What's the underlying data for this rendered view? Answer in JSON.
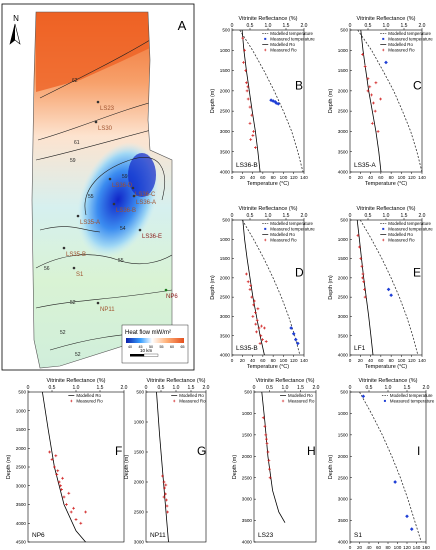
{
  "map": {
    "letter": "A",
    "north": "N",
    "legend_title": "Heat flow mW/m²",
    "legend_ticks": [
      "40",
      "45",
      "50",
      "55",
      "60",
      "65"
    ],
    "scale_label": "10 km",
    "contour_labels": [
      "62",
      "61",
      "59",
      "59",
      "55",
      "54",
      "56",
      "55",
      "52",
      "52",
      "52"
    ],
    "wells": [
      "LS23",
      "LS30",
      "LS36-D",
      "LS36-C",
      "LS36-A",
      "LS36-B",
      "LS35-A",
      "LS36-E",
      "LS35-B",
      "S1",
      "NP6",
      "NP11"
    ],
    "colors": {
      "high": "#ee6f2c",
      "mid": "#ffffff",
      "low": "#1f3fd6",
      "accent": "#b8860b"
    }
  },
  "panel_texts": {
    "vr_title": "Vitrinite Reflectance (%)",
    "temp_title": "Temperature (°C)",
    "depth_title": "Depth (m)",
    "legend_modelled_temp": "Modelled temperature",
    "legend_measured_temp": "Measured temperature",
    "legend_modelled_ro": "Modelled Ro",
    "legend_measured_ro": "Measured Ro"
  },
  "chart_data": [
    {
      "id": "B",
      "type": "scatter",
      "well": "LS36-B",
      "vr_ticks": [
        "0",
        "0.5",
        "1.0",
        "1.5",
        "2.0"
      ],
      "temp_ticks": [
        "0",
        "20",
        "40",
        "60",
        "80",
        "100",
        "120",
        "140"
      ],
      "depth_ticks": [
        "500",
        "1000",
        "1500",
        "2000",
        "2500",
        "3000",
        "3500",
        "4000"
      ],
      "ylim": [
        500,
        4000
      ],
      "vr_lim": [
        0,
        2
      ],
      "temp_lim": [
        0,
        140
      ],
      "legend": [
        "Modelled temperature",
        "Measured temperature",
        "Modelled Ro",
        "Measured Ro"
      ],
      "modelled_temperature": [
        [
          15,
          500
        ],
        [
          40,
          1000
        ],
        [
          62,
          1500
        ],
        [
          82,
          2000
        ],
        [
          100,
          2500
        ],
        [
          116,
          3000
        ],
        [
          128,
          3500
        ],
        [
          138,
          4000
        ]
      ],
      "measured_temperature": [
        [
          76,
          2230
        ],
        [
          80,
          2250
        ],
        [
          84,
          2270
        ],
        [
          86,
          2300
        ],
        [
          90,
          2320
        ]
      ],
      "modelled_ro": [
        [
          0.28,
          500
        ],
        [
          0.33,
          1000
        ],
        [
          0.4,
          1500
        ],
        [
          0.48,
          2000
        ],
        [
          0.56,
          2500
        ],
        [
          0.65,
          3000
        ],
        [
          0.72,
          3500
        ],
        [
          0.78,
          4000
        ]
      ],
      "measured_ro": [
        [
          0.3,
          700
        ],
        [
          0.35,
          1000
        ],
        [
          0.32,
          1300
        ],
        [
          0.38,
          1500
        ],
        [
          0.4,
          1800
        ],
        [
          0.42,
          2000
        ],
        [
          0.45,
          2200
        ],
        [
          0.5,
          2400
        ],
        [
          0.55,
          2600
        ],
        [
          0.5,
          2800
        ],
        [
          0.6,
          3000
        ],
        [
          0.52,
          3200
        ],
        [
          0.65,
          3400
        ],
        [
          0.58,
          3100
        ],
        [
          0.44,
          1900
        ]
      ]
    },
    {
      "id": "C",
      "type": "scatter",
      "well": "LS35-A",
      "vr_ticks": [
        "0",
        "0.5",
        "1.0",
        "1.5",
        "2.0"
      ],
      "temp_ticks": [
        "0",
        "20",
        "40",
        "60",
        "80",
        "100",
        "120",
        "140"
      ],
      "depth_ticks": [
        "500",
        "1000",
        "1500",
        "2000",
        "2500",
        "3000",
        "3500",
        "4000"
      ],
      "ylim": [
        500,
        4000
      ],
      "vr_lim": [
        0,
        2
      ],
      "temp_lim": [
        0,
        140
      ],
      "legend": [
        "Modelled temperature",
        "Measured temperature",
        "Modelled Ro",
        "Measured Ro"
      ],
      "modelled_temperature": [
        [
          15,
          500
        ],
        [
          42,
          1000
        ],
        [
          64,
          1500
        ],
        [
          85,
          2000
        ],
        [
          102,
          2500
        ],
        [
          118,
          3000
        ],
        [
          130,
          3500
        ],
        [
          140,
          4000
        ]
      ],
      "measured_temperature": [
        [
          70,
          1300
        ]
      ],
      "modelled_ro": [
        [
          0.3,
          500
        ],
        [
          0.36,
          1000
        ],
        [
          0.44,
          1500
        ],
        [
          0.52,
          2000
        ],
        [
          0.62,
          2500
        ],
        [
          0.72,
          3000
        ],
        [
          0.8,
          3500
        ],
        [
          0.86,
          4000
        ]
      ],
      "measured_ro": [
        [
          0.35,
          1100
        ],
        [
          0.42,
          1400
        ],
        [
          0.5,
          1700
        ],
        [
          0.55,
          1900
        ],
        [
          0.6,
          2100
        ],
        [
          0.65,
          2300
        ],
        [
          0.7,
          2500
        ],
        [
          0.62,
          2800
        ],
        [
          0.78,
          3000
        ],
        [
          0.72,
          1800
        ],
        [
          0.85,
          2200
        ],
        [
          0.5,
          2000
        ]
      ]
    },
    {
      "id": "D",
      "type": "scatter",
      "well": "LS35-B",
      "vr_ticks": [
        "0",
        "0.5",
        "1.0",
        "1.5",
        "2.0"
      ],
      "temp_ticks": [
        "0",
        "20",
        "40",
        "60",
        "80",
        "100",
        "120",
        "140"
      ],
      "depth_ticks": [
        "500",
        "1000",
        "1500",
        "2000",
        "2500",
        "3000",
        "3500",
        "4000"
      ],
      "ylim": [
        500,
        4000
      ],
      "vr_lim": [
        0,
        2
      ],
      "temp_lim": [
        0,
        140
      ],
      "legend": [
        "Modelled temperature",
        "Measured temperature",
        "Modelled Ro",
        "Measured Ro"
      ],
      "modelled_temperature": [
        [
          20,
          500
        ],
        [
          42,
          1000
        ],
        [
          62,
          1500
        ],
        [
          80,
          2000
        ],
        [
          96,
          2500
        ],
        [
          110,
          3000
        ],
        [
          122,
          3500
        ],
        [
          132,
          4000
        ]
      ],
      "measured_temperature": [
        [
          115,
          3300
        ],
        [
          120,
          3450
        ],
        [
          124,
          3600
        ],
        [
          128,
          3700
        ]
      ],
      "modelled_ro": [
        [
          0.3,
          500
        ],
        [
          0.35,
          1000
        ],
        [
          0.42,
          1500
        ],
        [
          0.5,
          2000
        ],
        [
          0.58,
          2500
        ],
        [
          0.68,
          3000
        ],
        [
          0.78,
          3500
        ],
        [
          0.9,
          4000
        ]
      ],
      "measured_ro": [
        [
          0.4,
          1900
        ],
        [
          0.45,
          2100
        ],
        [
          0.5,
          2300
        ],
        [
          0.55,
          2500
        ],
        [
          0.6,
          2700
        ],
        [
          0.65,
          2900
        ],
        [
          0.7,
          3100
        ],
        [
          0.75,
          3300
        ],
        [
          0.8,
          3500
        ],
        [
          0.85,
          3600
        ],
        [
          0.62,
          2600
        ],
        [
          0.72,
          2800
        ],
        [
          0.58,
          3000
        ],
        [
          0.9,
          3300
        ],
        [
          0.68,
          3400
        ],
        [
          0.78,
          3700
        ],
        [
          0.95,
          3650
        ],
        [
          0.52,
          2200
        ],
        [
          0.66,
          3200
        ],
        [
          0.82,
          3250
        ]
      ]
    },
    {
      "id": "E",
      "type": "scatter",
      "well": "LF1",
      "vr_ticks": [
        "0",
        "0.5",
        "1.0",
        "1.5",
        "2.0"
      ],
      "temp_ticks": [
        "0",
        "20",
        "40",
        "60",
        "80",
        "100",
        "120",
        "140"
      ],
      "depth_ticks": [
        "500",
        "1000",
        "1500",
        "2000",
        "2500",
        "3000",
        "3500",
        "4000"
      ],
      "ylim": [
        500,
        4000
      ],
      "vr_lim": [
        0,
        2
      ],
      "temp_lim": [
        0,
        140
      ],
      "legend": [
        "Modelled temperature",
        "Measured temperature",
        "Modelled Ro",
        "Measured Ro"
      ],
      "modelled_temperature": [
        [
          20,
          500
        ],
        [
          42,
          1000
        ],
        [
          62,
          1500
        ],
        [
          80,
          2000
        ],
        [
          96,
          2500
        ],
        [
          110,
          3000
        ],
        [
          122,
          3500
        ],
        [
          132,
          4000
        ]
      ],
      "measured_temperature": [
        [
          75,
          2300
        ],
        [
          80,
          2450
        ]
      ],
      "modelled_ro": [
        [
          0.2,
          500
        ],
        [
          0.26,
          1000
        ],
        [
          0.32,
          1500
        ],
        [
          0.38,
          2000
        ],
        [
          0.45,
          2500
        ],
        [
          0.52,
          3000
        ],
        [
          0.58,
          3500
        ],
        [
          0.64,
          4000
        ]
      ],
      "measured_ro": [
        [
          0.22,
          900
        ],
        [
          0.26,
          1200
        ],
        [
          0.3,
          1500
        ],
        [
          0.33,
          1700
        ],
        [
          0.36,
          1900
        ],
        [
          0.38,
          2100
        ],
        [
          0.4,
          2300
        ],
        [
          0.42,
          2500
        ],
        [
          0.35,
          2000
        ]
      ]
    },
    {
      "id": "F",
      "type": "scatter",
      "well": "NP6",
      "vr_ticks": [
        "0",
        "0.5",
        "1.0",
        "1.5",
        "2.0"
      ],
      "depth_ticks": [
        "500",
        "1000",
        "1500",
        "2000",
        "2500",
        "3000",
        "3500",
        "4000",
        "4500"
      ],
      "ylim": [
        500,
        4500
      ],
      "vr_lim": [
        0,
        2
      ],
      "legend": [
        "Modelled Ro",
        "Measured Ro"
      ],
      "modelled_ro": [
        [
          0.3,
          500
        ],
        [
          0.42,
          1500
        ],
        [
          0.55,
          2500
        ],
        [
          0.75,
          3500
        ],
        [
          1.0,
          4200
        ],
        [
          1.2,
          4500
        ]
      ],
      "measured_ro": [
        [
          0.45,
          2100
        ],
        [
          0.5,
          2300
        ],
        [
          0.55,
          2500
        ],
        [
          0.6,
          2700
        ],
        [
          0.65,
          2900
        ],
        [
          0.7,
          3100
        ],
        [
          0.75,
          3300
        ],
        [
          0.8,
          3500
        ],
        [
          0.9,
          3700
        ],
        [
          1.0,
          3900
        ],
        [
          1.1,
          4000
        ],
        [
          0.62,
          2600
        ],
        [
          0.72,
          2800
        ],
        [
          0.85,
          3200
        ],
        [
          0.58,
          2200
        ],
        [
          0.95,
          3600
        ],
        [
          1.2,
          3700
        ],
        [
          0.68,
          3000
        ]
      ]
    },
    {
      "id": "G",
      "type": "scatter",
      "well": "NP11",
      "vr_ticks": [
        "0",
        "0.5",
        "1.0",
        "1.5",
        "2.0"
      ],
      "depth_ticks": [
        "500",
        "1000",
        "1500",
        "2000",
        "2500",
        "3000"
      ],
      "ylim": [
        500,
        3000
      ],
      "vr_lim": [
        0,
        2
      ],
      "legend": [
        "Modelled Ro",
        "Measured Ro"
      ],
      "modelled_ro": [
        [
          0.35,
          500
        ],
        [
          0.45,
          1200
        ],
        [
          0.55,
          1800
        ],
        [
          0.65,
          2400
        ],
        [
          0.75,
          3000
        ]
      ],
      "measured_ro": [
        [
          0.55,
          1900
        ],
        [
          0.6,
          2000
        ],
        [
          0.62,
          2100
        ],
        [
          0.65,
          2200
        ],
        [
          0.68,
          2300
        ],
        [
          0.7,
          2400
        ],
        [
          0.72,
          2500
        ],
        [
          0.6,
          2250
        ],
        [
          0.66,
          2050
        ]
      ]
    },
    {
      "id": "H",
      "type": "scatter",
      "well": "LS23",
      "vr_ticks": [
        "0",
        "0.5",
        "1.0",
        "1.5",
        "2.0"
      ],
      "depth_ticks": [
        "500",
        "1000",
        "1500",
        "2000",
        "2500",
        "3000",
        "3500",
        "4000"
      ],
      "ylim": [
        500,
        4000
      ],
      "vr_lim": [
        0,
        2
      ],
      "legend": [
        "Modelled Ro",
        "Measured Ro"
      ],
      "modelled_ro": [
        [
          0.25,
          500
        ],
        [
          0.35,
          1200
        ],
        [
          0.45,
          2000
        ],
        [
          0.6,
          2800
        ],
        [
          0.8,
          3300
        ],
        [
          1.0,
          3550
        ]
      ],
      "measured_ro": [
        [
          0.3,
          1100
        ],
        [
          0.35,
          1300
        ],
        [
          0.38,
          1500
        ],
        [
          0.42,
          1700
        ],
        [
          0.45,
          1900
        ],
        [
          0.48,
          2100
        ],
        [
          0.5,
          2300
        ],
        [
          0.52,
          2500
        ],
        [
          0.4,
          1600
        ]
      ]
    },
    {
      "id": "I",
      "type": "scatter",
      "well": "S1",
      "vr_ticks": [
        "0",
        "0.5",
        "1.0",
        "1.5",
        "2.0"
      ],
      "temp_ticks": [
        "0",
        "20",
        "40",
        "60",
        "80",
        "100",
        "120",
        "140",
        "160"
      ],
      "depth_ticks": [
        "500",
        "1000",
        "1500",
        "2000",
        "2500",
        "3000",
        "3500",
        "4000"
      ],
      "ylim": [
        500,
        4000
      ],
      "temp_lim": [
        0,
        160
      ],
      "legend": [
        "Modelled temperature",
        "Measured temperature"
      ],
      "modelled_temperature": [
        [
          20,
          500
        ],
        [
          45,
          1000
        ],
        [
          68,
          1500
        ],
        [
          88,
          2000
        ],
        [
          106,
          2500
        ],
        [
          122,
          3000
        ],
        [
          136,
          3500
        ],
        [
          150,
          4000
        ]
      ],
      "measured_temperature": [
        [
          28,
          600
        ],
        [
          95,
          2600
        ],
        [
          120,
          3400
        ],
        [
          130,
          3700
        ]
      ]
    }
  ]
}
